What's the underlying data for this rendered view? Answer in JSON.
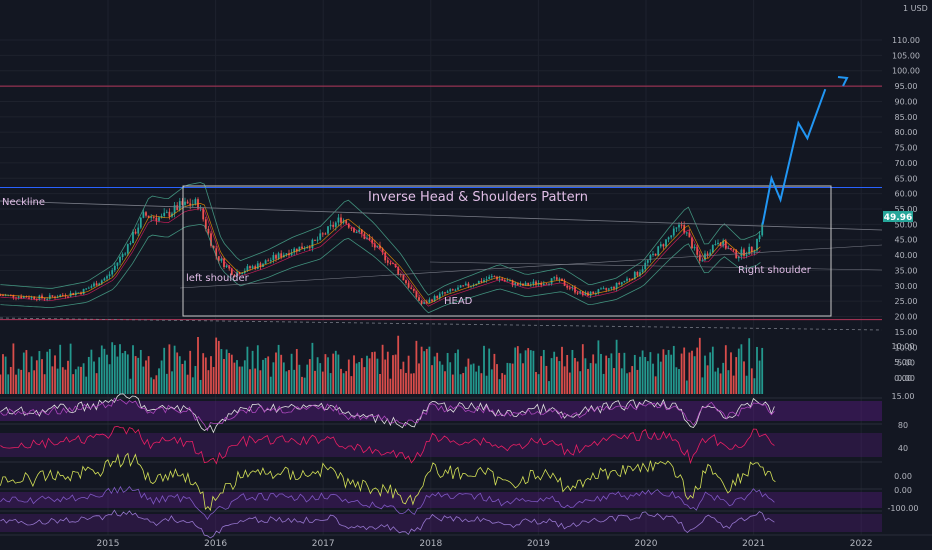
{
  "currency_label": "1 USD",
  "annotations": {
    "title": "Inverse Head & Shoulders Pattern",
    "neckline": "Neckline",
    "left_shoulder": "left shoulder",
    "head": "HEAD",
    "right_shoulder": "Right shoulder"
  },
  "current_price": "49.96",
  "colors": {
    "background": "#131722",
    "up": "#26a69a",
    "down": "#ef5350",
    "projection": "#2196f3",
    "rsi_band": "#6a1b9a",
    "current_price_badge": "#26a69a",
    "target_line": "#b2375a",
    "neckline_level": "#2962ff",
    "annotation_text": "#e1bee7"
  },
  "chart_data": {
    "type": "candlestick",
    "symbol_currency": "USD",
    "x_ticks": [
      "2015",
      "2016",
      "2017",
      "2018",
      "2019",
      "2020",
      "2021",
      "2022"
    ],
    "price_axis_ticks": [
      "110.00",
      "105.00",
      "100.00",
      "95.00",
      "90.00",
      "85.00",
      "80.00",
      "75.00",
      "70.00",
      "65.00",
      "60.00",
      "55.00",
      "50.00",
      "45.00",
      "40.00",
      "35.00",
      "30.00",
      "25.00",
      "20.00",
      "15.00",
      "10.00",
      "5.00",
      "0.00"
    ],
    "price_scale": "log",
    "price_series": {
      "name": "",
      "approx_path": [
        {
          "x": "2014-01",
          "y": 27
        },
        {
          "x": "2014-06",
          "y": 26
        },
        {
          "x": "2014-10",
          "y": 28
        },
        {
          "x": "2015-01",
          "y": 33
        },
        {
          "x": "2015-03",
          "y": 42
        },
        {
          "x": "2015-05",
          "y": 53
        },
        {
          "x": "2015-07",
          "y": 52
        },
        {
          "x": "2015-09",
          "y": 56
        },
        {
          "x": "2015-11",
          "y": 57
        },
        {
          "x": "2016-01",
          "y": 40
        },
        {
          "x": "2016-03",
          "y": 34
        },
        {
          "x": "2016-06",
          "y": 37
        },
        {
          "x": "2016-09",
          "y": 41
        },
        {
          "x": "2016-12",
          "y": 44
        },
        {
          "x": "2017-03",
          "y": 52
        },
        {
          "x": "2017-06",
          "y": 45
        },
        {
          "x": "2017-09",
          "y": 36
        },
        {
          "x": "2017-12",
          "y": 24
        },
        {
          "x": "2018-02",
          "y": 27
        },
        {
          "x": "2018-05",
          "y": 30
        },
        {
          "x": "2018-08",
          "y": 33
        },
        {
          "x": "2018-11",
          "y": 30
        },
        {
          "x": "2019-03",
          "y": 32
        },
        {
          "x": "2019-06",
          "y": 27
        },
        {
          "x": "2019-09",
          "y": 29
        },
        {
          "x": "2019-12",
          "y": 34
        },
        {
          "x": "2020-03",
          "y": 44
        },
        {
          "x": "2020-05",
          "y": 50
        },
        {
          "x": "2020-07",
          "y": 38
        },
        {
          "x": "2020-09",
          "y": 45
        },
        {
          "x": "2020-11",
          "y": 40
        },
        {
          "x": "2021-01",
          "y": 42
        },
        {
          "x": "2021-02",
          "y": 49.96
        }
      ]
    },
    "projection_path": [
      {
        "x": "2021-02",
        "y": 49.96
      },
      {
        "x": "2021-03",
        "y": 65
      },
      {
        "x": "2021-04",
        "y": 58
      },
      {
        "x": "2021-06",
        "y": 83
      },
      {
        "x": "2021-07",
        "y": 78
      },
      {
        "x": "2021-09",
        "y": 94
      }
    ],
    "horizontal_levels": [
      {
        "label": "target",
        "y": 95
      },
      {
        "label": "top",
        "y": 62
      },
      {
        "label": "support",
        "y": 19
      }
    ],
    "volume_axis_ticks": [
      "15.00",
      "10.00",
      "5.00",
      "0.00"
    ],
    "oscillator_axis_ticks": [
      "80",
      "40",
      "0.00",
      "0.00",
      "-100.00"
    ]
  }
}
